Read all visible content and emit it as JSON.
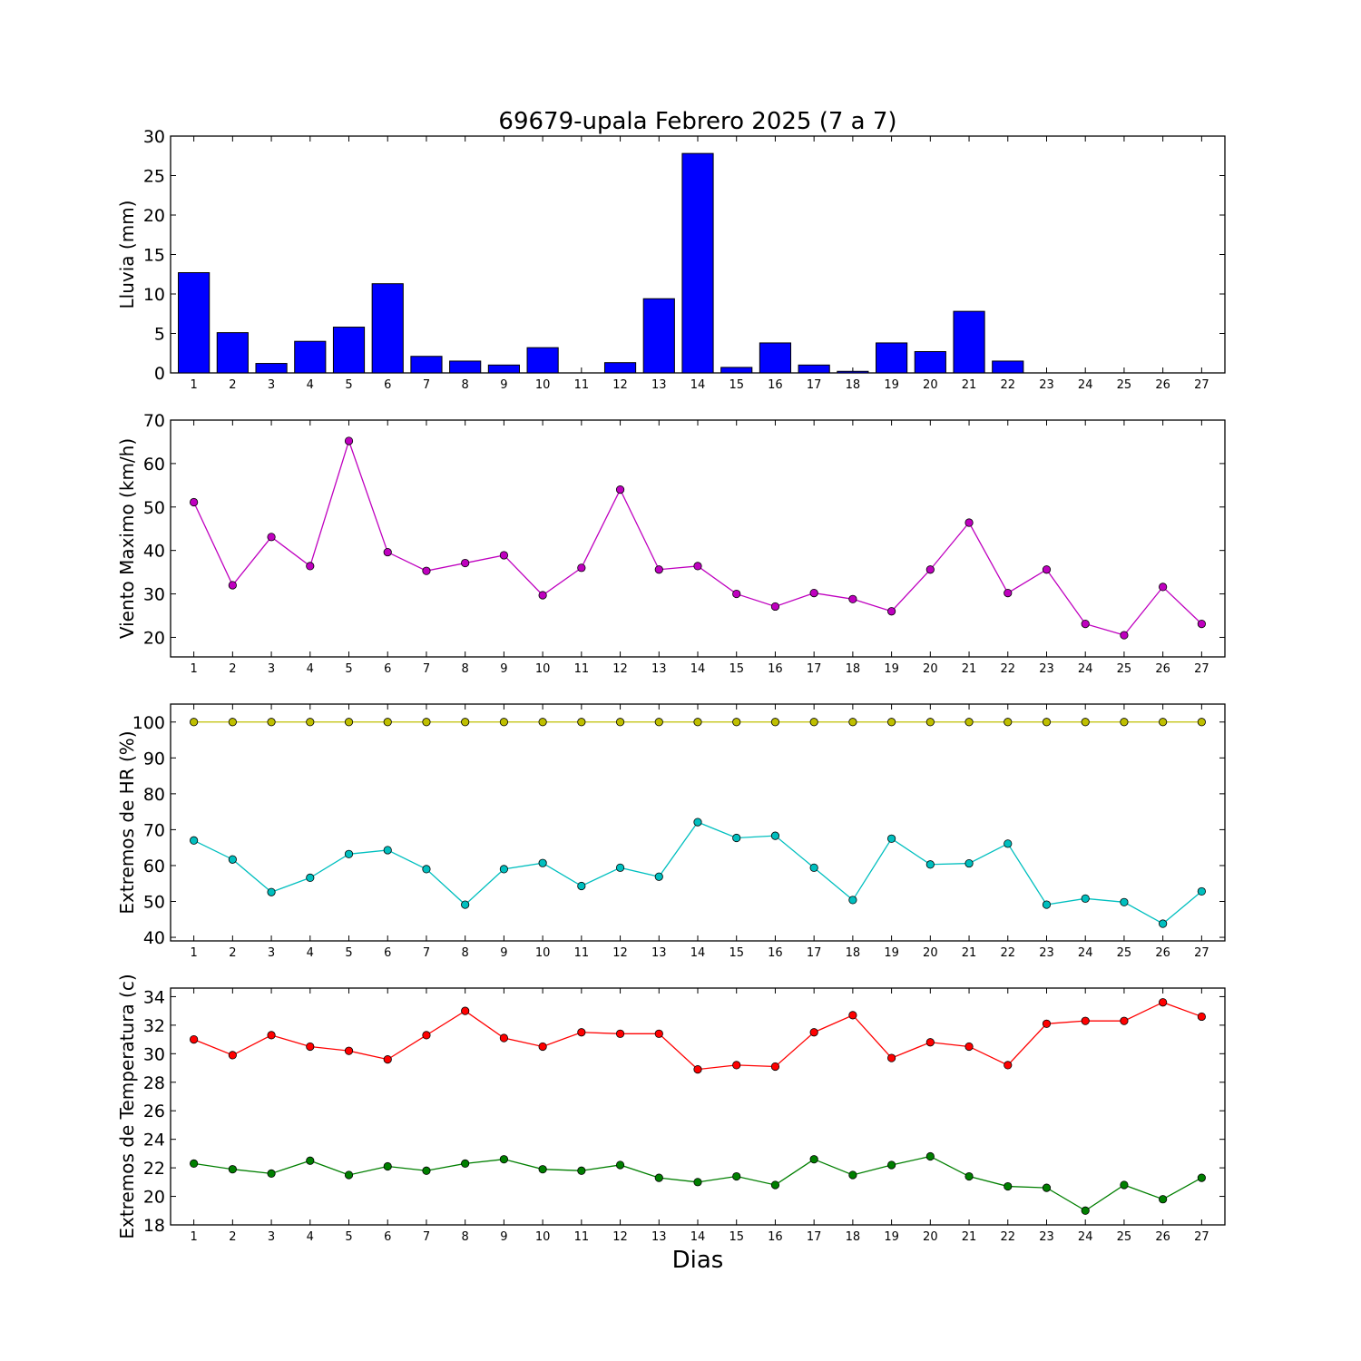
{
  "title": "69679-upala Febrero 2025  (7 a 7)",
  "xlabel": "Dias",
  "chart_data": [
    {
      "type": "bar",
      "ylabel": "Lluvia (mm)",
      "ylim": [
        0,
        30
      ],
      "yticks": [
        0,
        5,
        10,
        15,
        20,
        25,
        30
      ],
      "categories": [
        1,
        2,
        3,
        4,
        5,
        6,
        7,
        8,
        9,
        10,
        11,
        12,
        13,
        14,
        15,
        16,
        17,
        18,
        19,
        20,
        21,
        22,
        23,
        24,
        25,
        26,
        27
      ],
      "series": [
        {
          "color": "#0000ff",
          "values": [
            12.7,
            5.1,
            1.2,
            4.0,
            5.8,
            11.3,
            2.1,
            1.5,
            1.0,
            3.2,
            0.0,
            1.3,
            9.4,
            27.8,
            0.7,
            3.8,
            1.0,
            0.2,
            3.8,
            2.7,
            7.8,
            1.5,
            0.0,
            0.0,
            0.0,
            0.0,
            0.0
          ]
        }
      ]
    },
    {
      "type": "line",
      "ylabel": "Viento Maximo (km/h)",
      "ylim": [
        15.5,
        70
      ],
      "yticks": [
        20,
        30,
        40,
        50,
        60,
        70
      ],
      "categories": [
        1,
        2,
        3,
        4,
        5,
        6,
        7,
        8,
        9,
        10,
        11,
        12,
        13,
        14,
        15,
        16,
        17,
        18,
        19,
        20,
        21,
        22,
        23,
        24,
        25,
        26,
        27
      ],
      "series": [
        {
          "color": "#bf00bf",
          "values": [
            51.1,
            32.0,
            43.1,
            36.4,
            65.2,
            39.6,
            35.3,
            37.1,
            38.9,
            29.7,
            36.0,
            54.0,
            35.6,
            36.4,
            30.0,
            27.1,
            30.2,
            28.8,
            26.0,
            35.6,
            46.4,
            30.2,
            35.6,
            23.1,
            20.5,
            31.6,
            23.1
          ]
        }
      ]
    },
    {
      "type": "line",
      "ylabel": "Extremos de HR (%)",
      "ylim": [
        39,
        105
      ],
      "yticks": [
        40,
        50,
        60,
        70,
        80,
        90,
        100
      ],
      "categories": [
        1,
        2,
        3,
        4,
        5,
        6,
        7,
        8,
        9,
        10,
        11,
        12,
        13,
        14,
        15,
        16,
        17,
        18,
        19,
        20,
        21,
        22,
        23,
        24,
        25,
        26,
        27
      ],
      "series": [
        {
          "color": "#bfbf00",
          "values": [
            100,
            100,
            100,
            100,
            100,
            100,
            100,
            100,
            100,
            100,
            100,
            100,
            100,
            100,
            100,
            100,
            100,
            100,
            100,
            100,
            100,
            100,
            100,
            100,
            100,
            100,
            100
          ]
        },
        {
          "color": "#00bfbf",
          "values": [
            67.0,
            61.7,
            52.6,
            56.6,
            63.2,
            64.3,
            59.0,
            49.1,
            59.0,
            60.7,
            54.3,
            59.4,
            56.9,
            72.1,
            67.7,
            68.3,
            59.4,
            50.4,
            67.5,
            60.3,
            60.6,
            66.1,
            49.1,
            50.8,
            49.8,
            43.8,
            52.8
          ]
        }
      ]
    },
    {
      "type": "line",
      "ylabel": "Extremos de Temperatura (c)",
      "ylim": [
        18,
        34.6
      ],
      "yticks": [
        18,
        20,
        22,
        24,
        26,
        28,
        30,
        32,
        34
      ],
      "categories": [
        1,
        2,
        3,
        4,
        5,
        6,
        7,
        8,
        9,
        10,
        11,
        12,
        13,
        14,
        15,
        16,
        17,
        18,
        19,
        20,
        21,
        22,
        23,
        24,
        25,
        26,
        27
      ],
      "series": [
        {
          "color": "#ff0000",
          "values": [
            31.0,
            29.9,
            31.3,
            30.5,
            30.2,
            29.6,
            31.3,
            33.0,
            31.1,
            30.5,
            31.5,
            31.4,
            31.4,
            28.9,
            29.2,
            29.1,
            31.5,
            32.7,
            29.7,
            30.8,
            30.5,
            29.2,
            32.1,
            32.3,
            32.3,
            33.6,
            32.6
          ]
        },
        {
          "color": "#007f00",
          "values": [
            22.3,
            21.9,
            21.6,
            22.5,
            21.5,
            22.1,
            21.8,
            22.3,
            22.6,
            21.9,
            21.8,
            22.2,
            21.3,
            21.0,
            21.4,
            20.8,
            22.6,
            21.5,
            22.2,
            22.8,
            21.4,
            20.7,
            20.6,
            19.0,
            20.8,
            19.8,
            21.3
          ]
        }
      ]
    }
  ]
}
